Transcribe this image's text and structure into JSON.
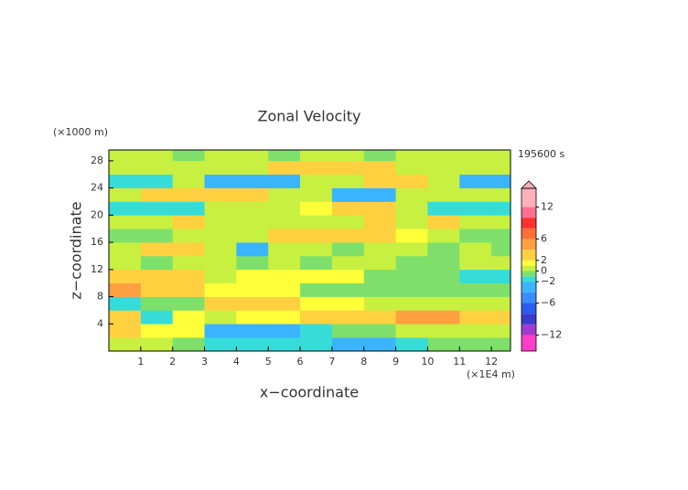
{
  "chart_data": {
    "type": "contour",
    "title": "Zonal Velocity",
    "time_label": "195600 s",
    "x_label": "x−coordinate",
    "y_label": "z−coordinate",
    "x_unit": "(×1E4 m)",
    "y_unit": "(×1000 m)",
    "xlim": [
      0,
      12.6
    ],
    "ylim": [
      0,
      29.6
    ],
    "xticks": [
      1,
      2,
      3,
      4,
      5,
      6,
      7,
      8,
      9,
      10,
      11,
      12
    ],
    "yticks": [
      4,
      8,
      12,
      16,
      20,
      24,
      28
    ],
    "x": [
      0.5,
      1.5,
      2.5,
      3.5,
      4.5,
      5.5,
      6.5,
      7.5,
      8.5,
      9.5,
      10.5,
      11.5,
      12.5
    ],
    "y": [
      1,
      3,
      5,
      7,
      9,
      11,
      13,
      15,
      17,
      19,
      21,
      23,
      25,
      27,
      29
    ],
    "z": [
      [
        0.5,
        0.5,
        -1,
        -1.5,
        -2,
        -2,
        -1.5,
        -3,
        -3,
        -1.5,
        -1,
        -0.5,
        -0.5
      ],
      [
        3,
        1,
        1,
        -2.5,
        -3,
        -2.5,
        -2,
        -1,
        -0.5,
        0.5,
        0.5,
        0.5,
        0.5
      ],
      [
        3,
        -2,
        1,
        0.5,
        1,
        1,
        2,
        3,
        3,
        4,
        4,
        3,
        2
      ],
      [
        -2,
        -0.5,
        -0.5,
        3,
        2,
        2,
        1.5,
        1,
        0.5,
        0.5,
        0.5,
        0.5,
        0.5
      ],
      [
        4,
        3,
        3,
        1,
        1,
        1,
        -0.5,
        -0.5,
        -0.5,
        -1,
        -1,
        -1,
        -1
      ],
      [
        2,
        3,
        3,
        0.5,
        1,
        1,
        1,
        1,
        -0.5,
        -1,
        -1,
        -1.5,
        -2
      ],
      [
        0.5,
        -0.5,
        0.5,
        0.5,
        -0.5,
        0.5,
        -0.5,
        0.5,
        0.5,
        -0.5,
        -0.5,
        0.5,
        0.5
      ],
      [
        0.5,
        3,
        2,
        0.5,
        -3,
        0.5,
        0.5,
        -0.5,
        0.5,
        0.5,
        -0.5,
        0.5,
        -0.5
      ],
      [
        -1,
        -0.5,
        0.5,
        0.5,
        0.5,
        2,
        3,
        3,
        3,
        1,
        0.5,
        -0.5,
        -1
      ],
      [
        0.5,
        0.5,
        2,
        0.5,
        0.5,
        0.5,
        0.5,
        0.5,
        2,
        0.5,
        3,
        0.5,
        0.5
      ],
      [
        -2,
        -2,
        -1.5,
        0.5,
        0.5,
        0.5,
        1,
        3,
        3,
        0.5,
        -2,
        -2,
        -2
      ],
      [
        0.5,
        3,
        3,
        3,
        2,
        0.5,
        0.5,
        -4,
        -3,
        0.5,
        0.5,
        0.5,
        0.5
      ],
      [
        -2,
        -1.5,
        0.5,
        -3,
        -4,
        -3,
        0.5,
        0.5,
        3,
        3,
        0.5,
        -3,
        -3
      ],
      [
        0.5,
        0.5,
        0.5,
        0.5,
        0.5,
        3,
        3,
        3,
        2,
        0.5,
        0.5,
        0.5,
        0.5
      ],
      [
        0.5,
        0.5,
        -0.5,
        0.5,
        0.5,
        -0.5,
        0.5,
        0.5,
        -0.5,
        0.5,
        0.5,
        0.5,
        0.5
      ]
    ],
    "colorbar": {
      "lim": [
        -15,
        15.5
      ],
      "levels": [
        -15,
        -12,
        -10,
        -8,
        -6,
        -4,
        -2,
        -1,
        0,
        1,
        2,
        4,
        6,
        8,
        10,
        12,
        15.5
      ],
      "colors": [
        "#ff3dc8",
        "#a23cd0",
        "#3a3acc",
        "#2f5cf0",
        "#3a8cff",
        "#3ab4ff",
        "#36dcd8",
        "#7ee06a",
        "#c8f040",
        "#ffff3a",
        "#ffd040",
        "#ffa040",
        "#ff7038",
        "#ff3030",
        "#ff7090",
        "#ffb0b8"
      ],
      "ticks": [
        12,
        6,
        2,
        0,
        {
          "value": -2,
          "label": "−2"
        },
        {
          "value": -6,
          "label": "−6"
        },
        {
          "value": -12,
          "label": "−12"
        }
      ]
    }
  }
}
